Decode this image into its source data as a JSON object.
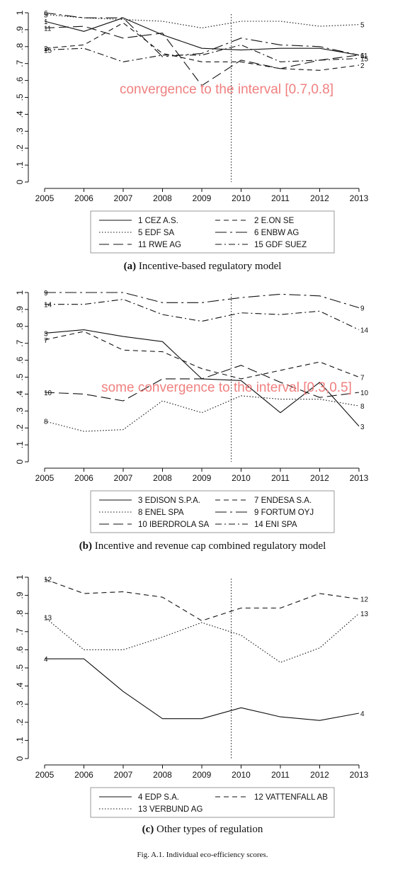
{
  "figure_caption": "Fig. A.1. Individual eco-efficiency scores.",
  "colors": {
    "annotation": "#f08080",
    "lines": "#111111"
  },
  "chart_data": [
    {
      "type": "line",
      "caption_label": "(a)",
      "caption_text": "Incentive-based regulatory model",
      "annotation": "convergence to the interval [0.7,0.8]",
      "x": [
        2005,
        2006,
        2007,
        2008,
        2009,
        2010,
        2011,
        2012,
        2013
      ],
      "x_ticks": [
        "2005",
        "2006",
        "2007",
        "2008",
        "2009",
        "2010",
        "2011",
        "2012",
        "2013"
      ],
      "ylim": [
        0,
        1
      ],
      "y_ticks": [
        "0",
        ".1",
        ".2",
        ".3",
        ".4",
        ".5",
        ".6",
        ".7",
        ".8",
        ".9",
        "1"
      ],
      "vline_x": 2009.75,
      "series": [
        {
          "id": "1",
          "name": "1 CEZ A.S.",
          "dash": "solid",
          "values": [
            0.95,
            0.89,
            0.97,
            0.87,
            0.79,
            0.78,
            0.79,
            0.79,
            0.75
          ]
        },
        {
          "id": "2",
          "name": "2 E.ON SE",
          "dash": "dash",
          "values": [
            0.79,
            0.81,
            0.94,
            0.76,
            0.71,
            0.71,
            0.67,
            0.66,
            0.69
          ]
        },
        {
          "id": "5",
          "name": "5 EDF SA",
          "dash": "dot",
          "values": [
            0.99,
            0.97,
            0.96,
            0.95,
            0.91,
            0.95,
            0.95,
            0.92,
            0.93
          ]
        },
        {
          "id": "6",
          "name": "6 ENBW AG",
          "dash": "longdashdot",
          "values": [
            1.0,
            0.97,
            0.97,
            0.74,
            0.76,
            0.85,
            0.81,
            0.8,
            0.75
          ]
        },
        {
          "id": "11",
          "name": "11 RWE AG",
          "dash": "longdash",
          "values": [
            0.91,
            0.92,
            0.85,
            0.88,
            0.57,
            0.72,
            0.67,
            0.72,
            0.75
          ]
        },
        {
          "id": "15",
          "name": "15 GDF SUEZ",
          "dash": "dashdot",
          "values": [
            0.78,
            0.79,
            0.71,
            0.75,
            0.75,
            0.81,
            0.71,
            0.72,
            0.73
          ]
        }
      ]
    },
    {
      "type": "line",
      "caption_label": "(b)",
      "caption_text": "Incentive and revenue cap combined regulatory model",
      "annotation": "some convergence to the interval [0.3,0.5]",
      "x": [
        2005,
        2006,
        2007,
        2008,
        2009,
        2010,
        2011,
        2012,
        2013
      ],
      "x_ticks": [
        "2005",
        "2006",
        "2007",
        "2008",
        "2009",
        "2010",
        "2011",
        "2012",
        "2013"
      ],
      "ylim": [
        0,
        1
      ],
      "y_ticks": [
        "0",
        ".1",
        ".2",
        ".3",
        ".4",
        ".5",
        ".6",
        ".7",
        ".8",
        ".9",
        "1"
      ],
      "vline_x": 2009.75,
      "series": [
        {
          "id": "3",
          "name": "3 EDISON S.P.A.",
          "dash": "solid",
          "values": [
            0.76,
            0.78,
            0.74,
            0.71,
            0.49,
            0.48,
            0.29,
            0.47,
            0.21
          ]
        },
        {
          "id": "7",
          "name": "7 ENDESA S.A.",
          "dash": "dash",
          "values": [
            0.72,
            0.77,
            0.66,
            0.65,
            0.55,
            0.49,
            0.54,
            0.59,
            0.5
          ]
        },
        {
          "id": "8",
          "name": "8 ENEL SPA",
          "dash": "dot",
          "values": [
            0.24,
            0.18,
            0.19,
            0.36,
            0.29,
            0.39,
            0.37,
            0.37,
            0.33
          ]
        },
        {
          "id": "9",
          "name": "9 FORTUM OYJ",
          "dash": "longdashdot",
          "values": [
            1.0,
            1.0,
            1.0,
            0.94,
            0.94,
            0.97,
            0.99,
            0.98,
            0.91
          ]
        },
        {
          "id": "10",
          "name": "10 IBERDROLA SA",
          "dash": "longdash",
          "values": [
            0.41,
            0.4,
            0.36,
            0.49,
            0.49,
            0.57,
            0.47,
            0.38,
            0.41
          ]
        },
        {
          "id": "14",
          "name": "14 ENI SPA",
          "dash": "dashdot",
          "values": [
            0.93,
            0.93,
            0.96,
            0.87,
            0.83,
            0.88,
            0.87,
            0.89,
            0.78
          ]
        }
      ]
    },
    {
      "type": "line",
      "caption_label": "(c)",
      "caption_text": "Other types of regulation",
      "annotation": "",
      "x": [
        2005,
        2006,
        2007,
        2008,
        2009,
        2010,
        2011,
        2012,
        2013
      ],
      "x_ticks": [
        "2005",
        "2006",
        "2007",
        "2008",
        "2009",
        "2010",
        "2011",
        "2012",
        "2013"
      ],
      "ylim": [
        0,
        1
      ],
      "y_ticks": [
        "0",
        ".1",
        ".2",
        ".3",
        ".4",
        ".5",
        ".6",
        ".7",
        ".8",
        ".9",
        "1"
      ],
      "vline_x": 2009.75,
      "series": [
        {
          "id": "4",
          "name": "4 EDP S.A.",
          "dash": "solid",
          "values": [
            0.55,
            0.55,
            0.37,
            0.22,
            0.22,
            0.28,
            0.23,
            0.21,
            0.25
          ]
        },
        {
          "id": "12",
          "name": "12 VATTENFALL AB",
          "dash": "dash",
          "values": [
            0.99,
            0.91,
            0.92,
            0.89,
            0.76,
            0.83,
            0.83,
            0.91,
            0.88
          ]
        },
        {
          "id": "13",
          "name": "13 VERBUND AG",
          "dash": "dot",
          "values": [
            0.78,
            0.6,
            0.6,
            0.67,
            0.75,
            0.68,
            0.53,
            0.61,
            0.8
          ]
        }
      ]
    }
  ]
}
